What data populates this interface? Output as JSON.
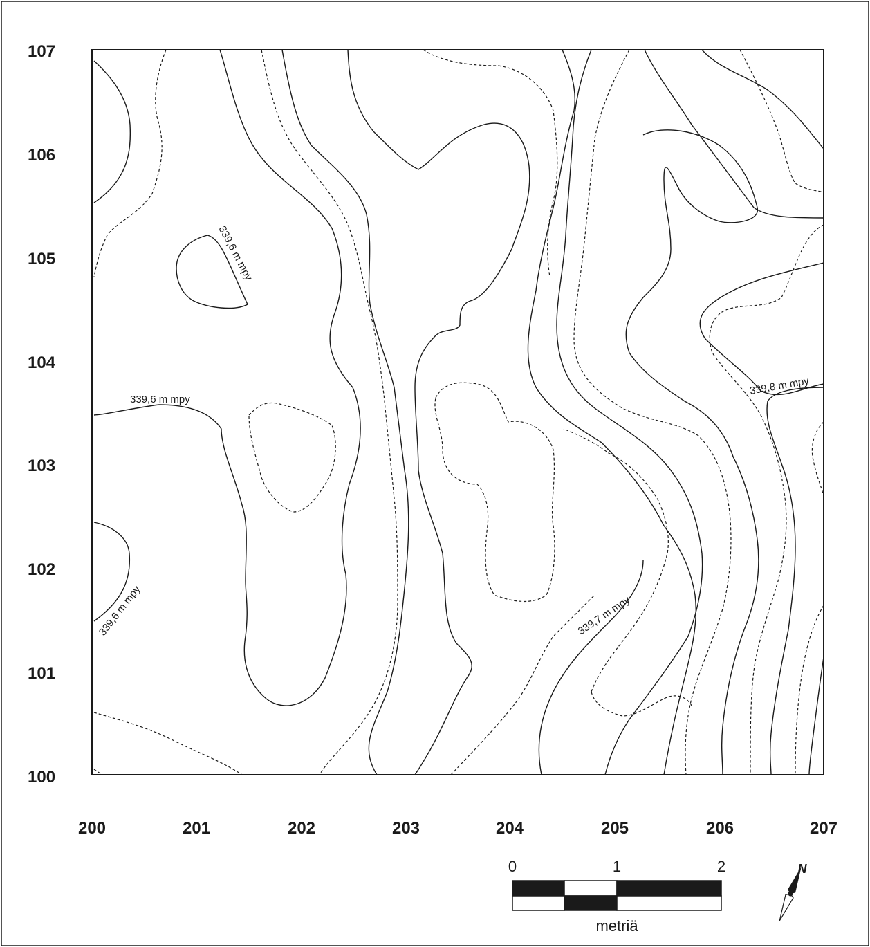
{
  "map": {
    "y_labels": [
      "107",
      "106",
      "105",
      "104",
      "103",
      "102",
      "101",
      "100"
    ],
    "x_labels": [
      "200",
      "201",
      "202",
      "203",
      "204",
      "205",
      "206",
      "207"
    ],
    "contour_labels": [
      "339,6 m mpy",
      "339,6 m mpy",
      "339,6 m mpy",
      "339,7 m mpy",
      "339,8 m mpy"
    ],
    "scale_bar": {
      "ticks": [
        "0",
        "1",
        "2"
      ],
      "unit": "metriä"
    },
    "north_arrow": {
      "label": "N"
    }
  }
}
